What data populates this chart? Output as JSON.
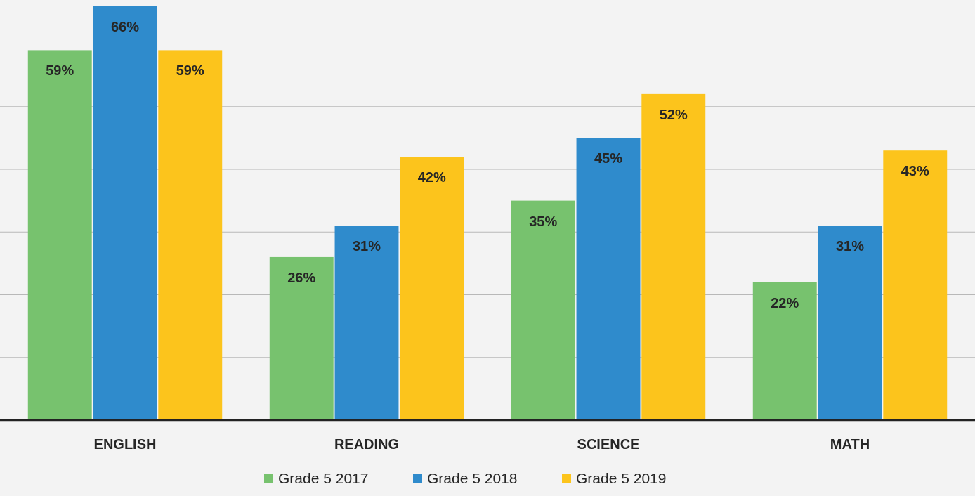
{
  "chart_data": {
    "type": "bar",
    "categories": [
      "ENGLISH",
      "READING",
      "SCIENCE",
      "MATH"
    ],
    "series": [
      {
        "name": "Grade 5 2017",
        "color": "#77c26e",
        "values": [
          59,
          26,
          35,
          22
        ],
        "value_labels": [
          "59%",
          "26%",
          "35%",
          "22%"
        ]
      },
      {
        "name": "Grade 5 2018",
        "color": "#2f8bcc",
        "values": [
          66,
          31,
          45,
          31
        ],
        "value_labels": [
          "66%",
          "31%",
          "45%",
          "31%"
        ]
      },
      {
        "name": "Grade 5 2019",
        "color": "#fcc41c",
        "values": [
          59,
          42,
          52,
          43
        ],
        "value_labels": [
          "59%",
          "42%",
          "52%",
          "43%"
        ]
      }
    ],
    "ylim": [
      0,
      67
    ],
    "yticks": [
      {
        "value": 0,
        "label": null
      },
      {
        "value": 10,
        "label": null
      },
      {
        "value": 20,
        "label": null
      },
      {
        "value": 30,
        "label": null
      },
      {
        "value": 40,
        "label": null
      },
      {
        "value": 50,
        "label": null
      },
      {
        "value": 60,
        "label": null
      }
    ],
    "tick_labels": "x",
    "grid": "y",
    "legend": "bottom"
  }
}
